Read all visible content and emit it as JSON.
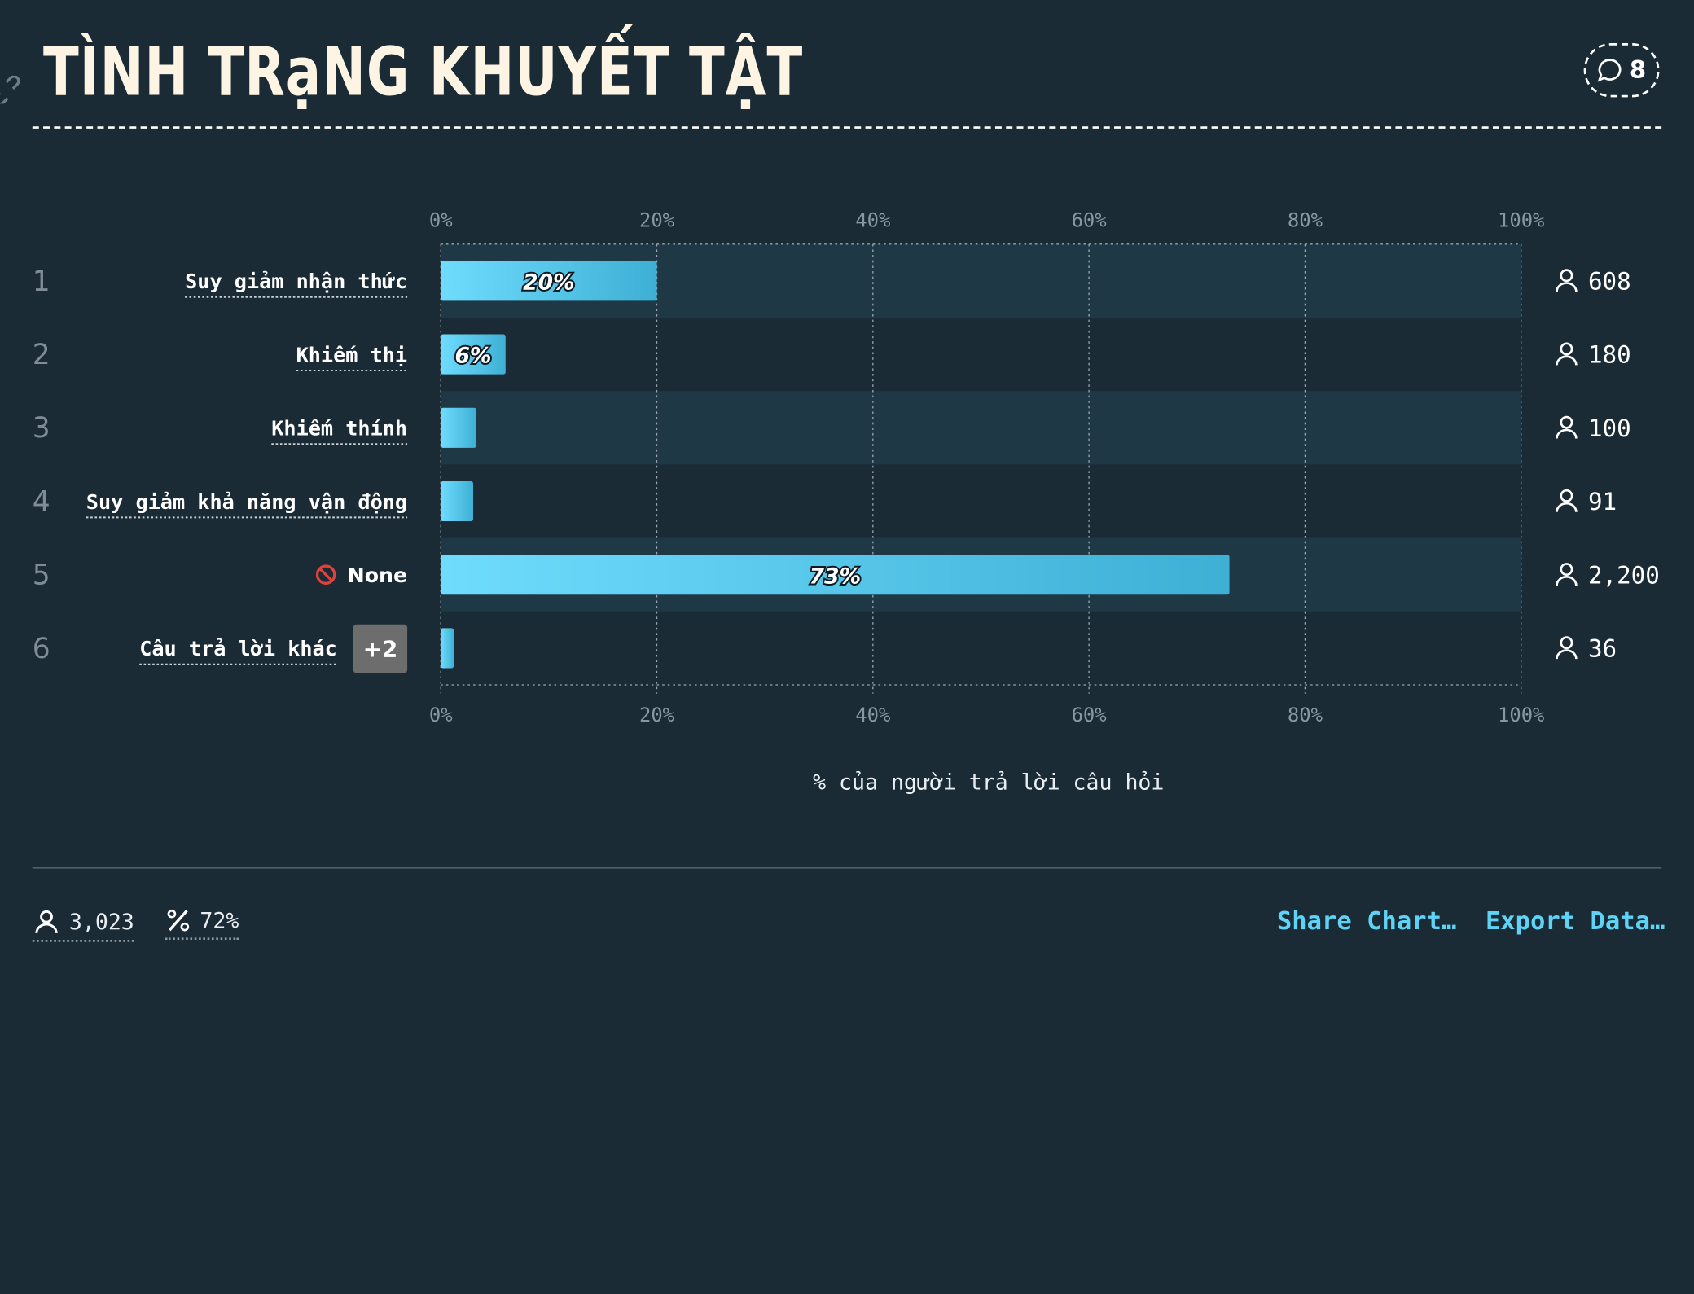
{
  "header": {
    "title": "TÌNH TRạNG KHUYẾT TẬT",
    "comment_count": "8"
  },
  "chart_data": {
    "type": "bar",
    "orientation": "horizontal",
    "categories": [
      "Suy giảm nhận thức",
      "Khiếm thị",
      "Khiếm thính",
      "Suy giảm khả năng vận động",
      "None",
      "Câu trả lời khác"
    ],
    "ranks": [
      "1",
      "2",
      "3",
      "4",
      "5",
      "6"
    ],
    "values": [
      20,
      6,
      3.3,
      3,
      73,
      1.2
    ],
    "bar_labels": [
      "20%",
      "6%",
      "",
      "",
      "73%",
      ""
    ],
    "counts": [
      "608",
      "180",
      "100",
      "91",
      "2,200",
      "36"
    ],
    "extra_badge": "+2",
    "xticks": [
      "0%",
      "20%",
      "40%",
      "60%",
      "80%",
      "100%"
    ],
    "xlim": [
      0,
      100
    ],
    "xlabel": "% của người trả lời câu hỏi",
    "grid": true
  },
  "footer": {
    "respondents": "3,023",
    "percent": "72%",
    "share_label": "Share Chart…",
    "export_label": "Export Data…"
  },
  "colors": {
    "background": "#1a2b35",
    "band": "#1e3846",
    "bar_start": "#6fdcfd",
    "bar_end": "#3eb0d5",
    "accent": "#5fd3f5"
  }
}
